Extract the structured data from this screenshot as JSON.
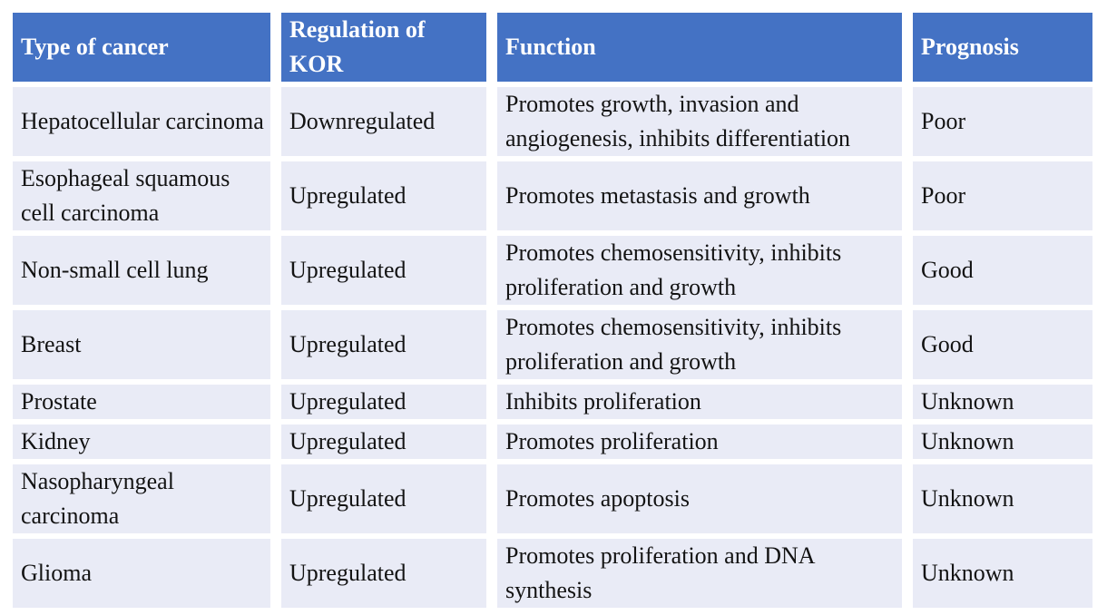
{
  "colors": {
    "header_bg": "#4472C4",
    "header_text": "#FFFFFF",
    "row_bg": "#E9EBF6",
    "body_text": "#131313",
    "page_bg": "#FFFFFF"
  },
  "table": {
    "row_keys": [
      "type",
      "regulation",
      "function",
      "prognosis"
    ],
    "columns": [
      {
        "label": "Type of cancer"
      },
      {
        "label": "Regulation of KOR"
      },
      {
        "label": "Function"
      },
      {
        "label": "Prognosis"
      }
    ],
    "rows": [
      {
        "type": "Hepatocellular carcinoma",
        "regulation": "Downregulated",
        "function": "Promotes growth, invasion and angiogenesis, inhibits differentiation",
        "prognosis": "Poor"
      },
      {
        "type": "Esophageal squamous cell carcinoma",
        "regulation": "Upregulated",
        "function": "Promotes metastasis and growth",
        "prognosis": "Poor"
      },
      {
        "type": "Non-small cell lung",
        "regulation": "Upregulated",
        "function": "Promotes chemosensitivity, inhibits proliferation and growth",
        "prognosis": "Good"
      },
      {
        "type": "Breast",
        "regulation": "Upregulated",
        "function": "Promotes chemosensitivity, inhibits proliferation and growth",
        "prognosis": "Good"
      },
      {
        "type": "Prostate",
        "regulation": "Upregulated",
        "function": "Inhibits proliferation",
        "prognosis": "Unknown"
      },
      {
        "type": "Kidney",
        "regulation": "Upregulated",
        "function": "Promotes proliferation",
        "prognosis": "Unknown"
      },
      {
        "type": "Nasopharyngeal carcinoma",
        "regulation": "Upregulated",
        "function": "Promotes apoptosis",
        "prognosis": "Unknown"
      },
      {
        "type": "Glioma",
        "regulation": "Upregulated",
        "function": "Promotes proliferation and DNA synthesis",
        "prognosis": "Unknown"
      }
    ]
  }
}
